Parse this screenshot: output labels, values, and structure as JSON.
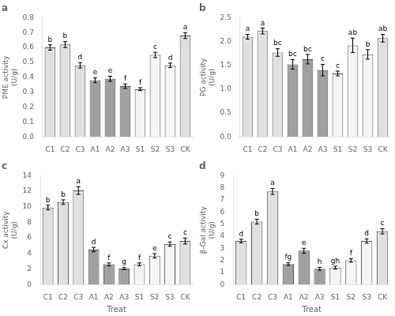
{
  "chart_data": [
    {
      "type": "bar",
      "title": "a",
      "ylabel": "PME activity\n(U/g)",
      "categories": [
        "C1",
        "C2",
        "C3",
        "A1",
        "A2",
        "A3",
        "S1",
        "S2",
        "S3",
        "CK"
      ],
      "values": [
        0.6,
        0.62,
        0.48,
        0.38,
        0.39,
        0.34,
        0.32,
        0.55,
        0.48,
        0.68
      ],
      "errors": [
        0.018,
        0.02,
        0.018,
        0.016,
        0.017,
        0.015,
        0.01,
        0.018,
        0.015,
        0.02
      ],
      "annotations": [
        "b",
        "b",
        "d",
        "e",
        "e",
        "f",
        "f",
        "c",
        "d",
        "a"
      ],
      "colors": [
        "#e0e0e0",
        "#e0e0e0",
        "#e0e0e0",
        "#a0a0a0",
        "#a0a0a0",
        "#a0a0a0",
        "#f5f5f5",
        "#f5f5f5",
        "#f5f5f5",
        "#e0e0e0"
      ],
      "ylim": [
        0,
        0.8
      ],
      "yticks": [
        {
          "value": 0,
          "label": "0.0"
        },
        0.1,
        0.2,
        0.3,
        0.4,
        0.5,
        0.6,
        0.7,
        0.8
      ],
      "grid": false
    },
    {
      "type": "bar",
      "title": "b",
      "ylabel": "PG activity\n(U/g)",
      "categories": [
        "C1",
        "C2",
        "C3",
        "A1",
        "A2",
        "A3",
        "S1",
        "S2",
        "S3",
        "CK"
      ],
      "values": [
        2.1,
        2.22,
        1.77,
        1.52,
        1.63,
        1.4,
        1.33,
        1.92,
        1.73,
        2.07
      ],
      "errors": [
        0.05,
        0.06,
        0.08,
        0.1,
        0.1,
        0.12,
        0.05,
        0.15,
        0.1,
        0.08
      ],
      "annotations": [
        "a",
        "a",
        "bc",
        "bc",
        "bc",
        "c",
        "c",
        "ab",
        "b",
        "ab"
      ],
      "colors": [
        "#e0e0e0",
        "#e0e0e0",
        "#e0e0e0",
        "#a0a0a0",
        "#a0a0a0",
        "#a0a0a0",
        "#f5f5f5",
        "#f5f5f5",
        "#f5f5f5",
        "#e0e0e0"
      ],
      "ylim": [
        0,
        2.5
      ],
      "yticks": [
        {
          "value": 0,
          "label": "0.0"
        },
        0.5,
        {
          "value": 1,
          "label": "1.0"
        },
        1.5,
        {
          "value": 2,
          "label": "2.0"
        },
        2.5
      ],
      "grid": false
    },
    {
      "type": "bar",
      "title": "c",
      "ylabel": "Cx activity\n(U/g)",
      "xlabel": "Treat",
      "categories": [
        "C1",
        "C2",
        "C3",
        "A1",
        "A2",
        "A3",
        "S1",
        "S2",
        "S3",
        "CK"
      ],
      "values": [
        9.9,
        10.6,
        12.1,
        4.5,
        2.6,
        2.05,
        2.6,
        3.7,
        5.2,
        5.6
      ],
      "errors": [
        0.3,
        0.3,
        0.5,
        0.28,
        0.18,
        0.14,
        0.18,
        0.28,
        0.28,
        0.38
      ],
      "annotations": [
        "b",
        "b",
        "a",
        "d",
        "f",
        "g",
        "f",
        "e",
        "c",
        "c"
      ],
      "colors": [
        "#e0e0e0",
        "#e0e0e0",
        "#e0e0e0",
        "#a0a0a0",
        "#a0a0a0",
        "#a0a0a0",
        "#f5f5f5",
        "#f5f5f5",
        "#f5f5f5",
        "#e0e0e0"
      ],
      "ylim": [
        0,
        14
      ],
      "yticks": [
        0,
        2,
        4,
        6,
        8,
        10,
        12,
        14
      ],
      "grid": false
    },
    {
      "type": "bar",
      "title": "d",
      "ylabel": "β-Gal activity\n(U/g)",
      "xlabel": "Treat",
      "categories": [
        "C1",
        "C2",
        "C3",
        "A1",
        "A2",
        "A3",
        "S1",
        "S2",
        "S3",
        "CK"
      ],
      "values": [
        3.6,
        5.2,
        7.7,
        1.7,
        2.8,
        1.3,
        1.4,
        2.0,
        3.6,
        4.4
      ],
      "errors": [
        0.15,
        0.2,
        0.25,
        0.12,
        0.2,
        0.12,
        0.12,
        0.15,
        0.18,
        0.22
      ],
      "annotations": [
        "d",
        "b",
        "a",
        "fg",
        "e",
        "h",
        "gh",
        "f",
        "d",
        "c"
      ],
      "colors": [
        "#e0e0e0",
        "#e0e0e0",
        "#e0e0e0",
        "#a0a0a0",
        "#a0a0a0",
        "#a0a0a0",
        "#f5f5f5",
        "#f5f5f5",
        "#f5f5f5",
        "#e0e0e0"
      ],
      "ylim": [
        0,
        9
      ],
      "yticks": [
        0,
        1,
        2,
        3,
        4,
        5,
        6,
        7,
        8,
        9
      ],
      "grid": false
    }
  ]
}
